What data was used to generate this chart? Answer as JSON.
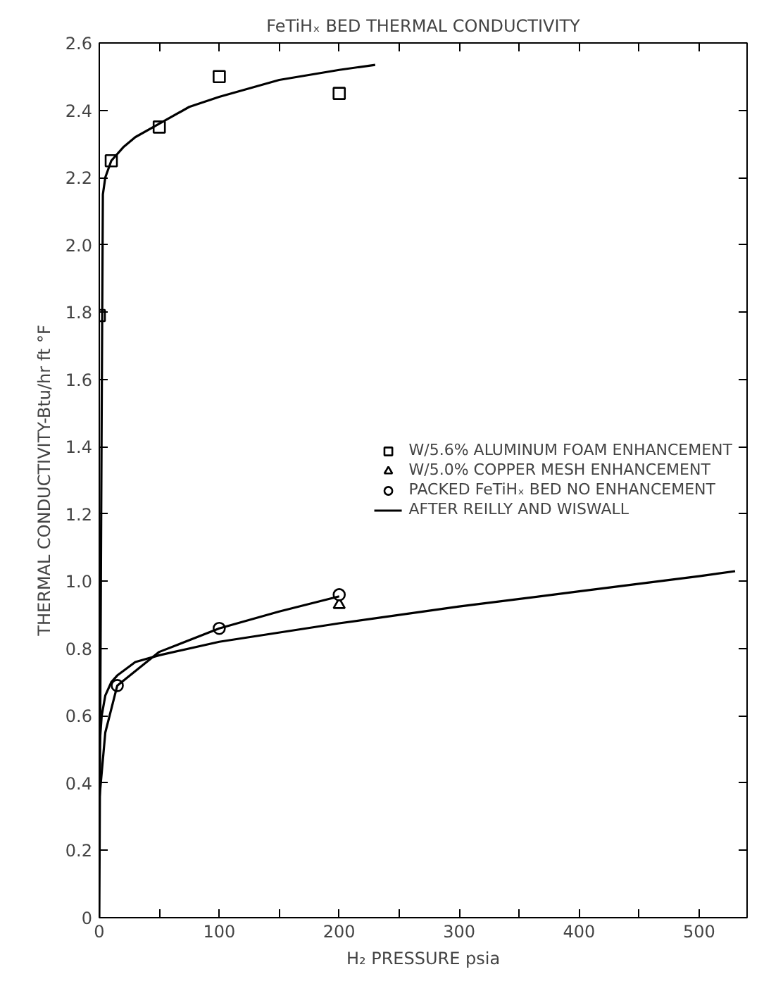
{
  "chart_data": {
    "type": "scatter",
    "title": "FeTiHₓ BED THERMAL CONDUCTIVITY",
    "xlabel": "H₂ PRESSURE psia",
    "ylabel": "THERMAL CONDUCTIVITY-Btu/hr ft °F",
    "xlim": [
      0,
      540
    ],
    "ylim": [
      0,
      2.6
    ],
    "xticks": [
      0,
      {
        "value": 50,
        "label": null
      },
      100,
      {
        "value": 150,
        "label": null
      },
      200,
      {
        "value": 250,
        "label": null
      },
      300,
      {
        "value": 350,
        "label": null
      },
      400,
      {
        "value": 450,
        "label": null
      },
      500
    ],
    "yticks": [
      0,
      0.2,
      0.4,
      0.6,
      0.8,
      {
        "value": 1,
        "label": "1.0"
      },
      1.2,
      1.4,
      1.6,
      1.8,
      {
        "value": 2,
        "label": "2.0"
      },
      2.2,
      2.4,
      2.6
    ],
    "grid": false,
    "legend": "right",
    "series": [
      {
        "name": "W/5.6% ALUMINUM FOAM ENHANCEMENT",
        "marker": "square",
        "color": "#000000",
        "x": [
          0,
          10,
          50,
          100,
          200
        ],
        "values": [
          1.79,
          2.25,
          2.35,
          2.5,
          2.45
        ]
      },
      {
        "name": "W/5.0% COPPER MESH ENHANCEMENT",
        "marker": "triangle",
        "color": "#000000",
        "x": [
          200
        ],
        "values": [
          0.93
        ]
      },
      {
        "name": "PACKED FeTiHₓ BED NO ENHANCEMENT",
        "marker": "circle",
        "color": "#000000",
        "x": [
          15,
          100,
          200
        ],
        "values": [
          0.69,
          0.86,
          0.96
        ]
      },
      {
        "type": "line",
        "marker": "none",
        "color": "#000000",
        "x": [
          0,
          2,
          3,
          5,
          10,
          20,
          30,
          50,
          75,
          100,
          150,
          200,
          230
        ],
        "values": [
          0.0,
          1.5,
          2.15,
          2.2,
          2.25,
          2.29,
          2.32,
          2.36,
          2.41,
          2.44,
          2.49,
          2.52,
          2.535
        ]
      },
      {
        "name": "AFTER REILLY AND WISWALL",
        "type": "line",
        "marker": "none",
        "color": "#000000",
        "x": [
          0,
          2,
          5,
          10,
          15,
          30,
          50,
          100,
          200,
          300,
          400,
          500,
          530
        ],
        "values": [
          0.5,
          0.6,
          0.66,
          0.7,
          0.72,
          0.76,
          0.78,
          0.82,
          0.875,
          0.925,
          0.97,
          1.015,
          1.03
        ]
      },
      {
        "type": "line",
        "marker": "none",
        "color": "#000000",
        "x": [
          0,
          5,
          15,
          50,
          100,
          150,
          200
        ],
        "values": [
          0.35,
          0.55,
          0.69,
          0.79,
          0.86,
          0.91,
          0.955
        ]
      }
    ]
  }
}
